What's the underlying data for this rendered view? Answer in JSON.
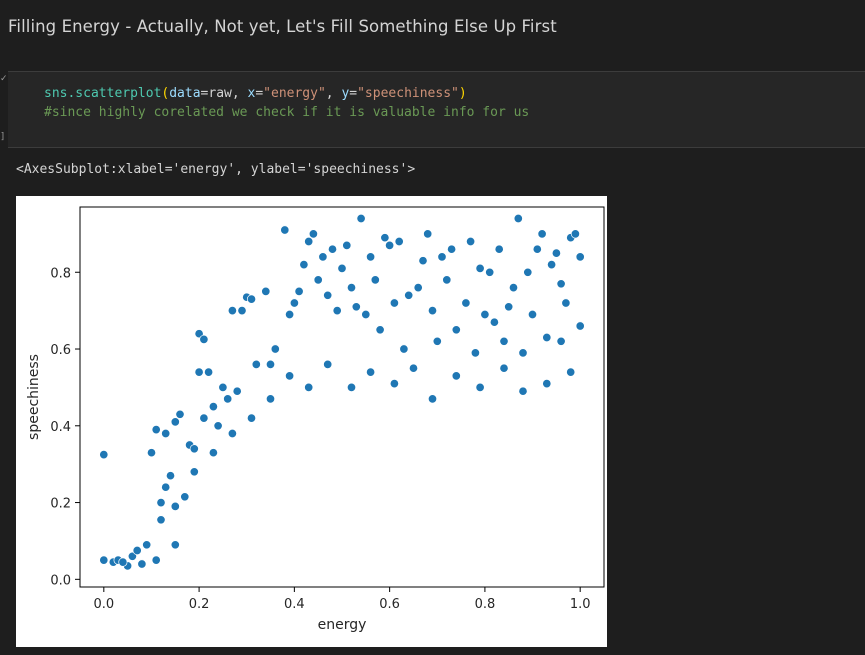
{
  "notebook": {
    "markdown_heading": "Filling Energy - Actually, Not yet, Let's Fill Something Else Up First",
    "cell_status_glyph": "✓",
    "cell_bracket_glyph": "]",
    "code": {
      "line1": {
        "func": "sns.scatterplot",
        "p_open": "(",
        "a1_key": "data",
        "a1_eq": "=raw, ",
        "a2_key": "x",
        "a2_eq": "=",
        "a2_val": "\"energy\"",
        "sep": ", ",
        "a3_key": "y",
        "a3_eq": "=",
        "a3_val": "\"speechiness\"",
        "p_close": ")"
      },
      "line2": "#since highly corelated we check if it is valuable info for us"
    },
    "output_text": "<AxesSubplot:xlabel='energy', ylabel='speechiness'>"
  },
  "colors": {
    "point_fill": "#1f77b4",
    "point_edge": "#ffffff"
  },
  "chart_data": {
    "type": "scatter",
    "xlabel": "energy",
    "ylabel": "speechiness",
    "xlim": [
      -0.05,
      1.05
    ],
    "ylim": [
      -0.02,
      0.97
    ],
    "xticks": [
      0.0,
      0.2,
      0.4,
      0.6,
      0.8,
      1.0
    ],
    "xtick_labels": [
      "0.0",
      "0.2",
      "0.4",
      "0.6",
      "0.8",
      "1.0"
    ],
    "yticks": [
      0.0,
      0.2,
      0.4,
      0.6,
      0.8
    ],
    "ytick_labels": [
      "0.0",
      "0.2",
      "0.4",
      "0.6",
      "0.8"
    ],
    "grid": false,
    "points": [
      [
        0.0,
        0.325
      ],
      [
        0.0,
        0.05
      ],
      [
        0.02,
        0.045
      ],
      [
        0.03,
        0.05
      ],
      [
        0.06,
        0.06
      ],
      [
        0.07,
        0.075
      ],
      [
        0.09,
        0.09
      ],
      [
        0.1,
        0.33
      ],
      [
        0.11,
        0.39
      ],
      [
        0.12,
        0.2
      ],
      [
        0.12,
        0.155
      ],
      [
        0.13,
        0.38
      ],
      [
        0.13,
        0.24
      ],
      [
        0.14,
        0.27
      ],
      [
        0.15,
        0.41
      ],
      [
        0.15,
        0.19
      ],
      [
        0.16,
        0.43
      ],
      [
        0.17,
        0.215
      ],
      [
        0.18,
        0.35
      ],
      [
        0.19,
        0.34
      ],
      [
        0.2,
        0.54
      ],
      [
        0.2,
        0.64
      ],
      [
        0.21,
        0.625
      ],
      [
        0.21,
        0.42
      ],
      [
        0.22,
        0.54
      ],
      [
        0.23,
        0.45
      ],
      [
        0.24,
        0.4
      ],
      [
        0.25,
        0.5
      ],
      [
        0.26,
        0.47
      ],
      [
        0.27,
        0.7
      ],
      [
        0.28,
        0.49
      ],
      [
        0.29,
        0.7
      ],
      [
        0.3,
        0.735
      ],
      [
        0.31,
        0.73
      ],
      [
        0.32,
        0.56
      ],
      [
        0.34,
        0.75
      ],
      [
        0.35,
        0.56
      ],
      [
        0.36,
        0.6
      ],
      [
        0.38,
        0.91
      ],
      [
        0.39,
        0.69
      ],
      [
        0.4,
        0.72
      ],
      [
        0.41,
        0.75
      ],
      [
        0.42,
        0.82
      ],
      [
        0.43,
        0.88
      ],
      [
        0.44,
        0.9
      ],
      [
        0.45,
        0.78
      ],
      [
        0.46,
        0.84
      ],
      [
        0.47,
        0.74
      ],
      [
        0.48,
        0.86
      ],
      [
        0.49,
        0.7
      ],
      [
        0.5,
        0.81
      ],
      [
        0.51,
        0.87
      ],
      [
        0.52,
        0.76
      ],
      [
        0.53,
        0.71
      ],
      [
        0.54,
        0.94
      ],
      [
        0.55,
        0.69
      ],
      [
        0.56,
        0.84
      ],
      [
        0.57,
        0.78
      ],
      [
        0.58,
        0.65
      ],
      [
        0.59,
        0.89
      ],
      [
        0.6,
        0.87
      ],
      [
        0.61,
        0.72
      ],
      [
        0.62,
        0.88
      ],
      [
        0.63,
        0.6
      ],
      [
        0.64,
        0.74
      ],
      [
        0.66,
        0.76
      ],
      [
        0.67,
        0.83
      ],
      [
        0.68,
        0.9
      ],
      [
        0.69,
        0.7
      ],
      [
        0.7,
        0.62
      ],
      [
        0.71,
        0.84
      ],
      [
        0.72,
        0.78
      ],
      [
        0.73,
        0.86
      ],
      [
        0.74,
        0.65
      ],
      [
        0.76,
        0.72
      ],
      [
        0.77,
        0.88
      ],
      [
        0.78,
        0.59
      ],
      [
        0.79,
        0.81
      ],
      [
        0.8,
        0.69
      ],
      [
        0.81,
        0.8
      ],
      [
        0.82,
        0.67
      ],
      [
        0.83,
        0.86
      ],
      [
        0.84,
        0.62
      ],
      [
        0.85,
        0.71
      ],
      [
        0.86,
        0.76
      ],
      [
        0.87,
        0.94
      ],
      [
        0.88,
        0.59
      ],
      [
        0.89,
        0.8
      ],
      [
        0.9,
        0.69
      ],
      [
        0.91,
        0.86
      ],
      [
        0.92,
        0.9
      ],
      [
        0.93,
        0.63
      ],
      [
        0.94,
        0.82
      ],
      [
        0.95,
        0.85
      ],
      [
        0.96,
        0.77
      ],
      [
        0.97,
        0.72
      ],
      [
        0.98,
        0.89
      ],
      [
        0.99,
        0.9
      ],
      [
        1.0,
        0.84
      ],
      [
        1.0,
        0.66
      ],
      [
        0.98,
        0.54
      ],
      [
        0.96,
        0.62
      ],
      [
        0.93,
        0.51
      ],
      [
        0.88,
        0.49
      ],
      [
        0.84,
        0.55
      ],
      [
        0.79,
        0.5
      ],
      [
        0.74,
        0.53
      ],
      [
        0.69,
        0.47
      ],
      [
        0.65,
        0.55
      ],
      [
        0.61,
        0.51
      ],
      [
        0.56,
        0.54
      ],
      [
        0.52,
        0.5
      ],
      [
        0.47,
        0.56
      ],
      [
        0.43,
        0.5
      ],
      [
        0.39,
        0.53
      ],
      [
        0.35,
        0.47
      ],
      [
        0.31,
        0.42
      ],
      [
        0.27,
        0.38
      ],
      [
        0.23,
        0.33
      ],
      [
        0.19,
        0.28
      ],
      [
        0.15,
        0.09
      ],
      [
        0.11,
        0.05
      ],
      [
        0.08,
        0.04
      ],
      [
        0.05,
        0.035
      ],
      [
        0.04,
        0.045
      ]
    ]
  }
}
